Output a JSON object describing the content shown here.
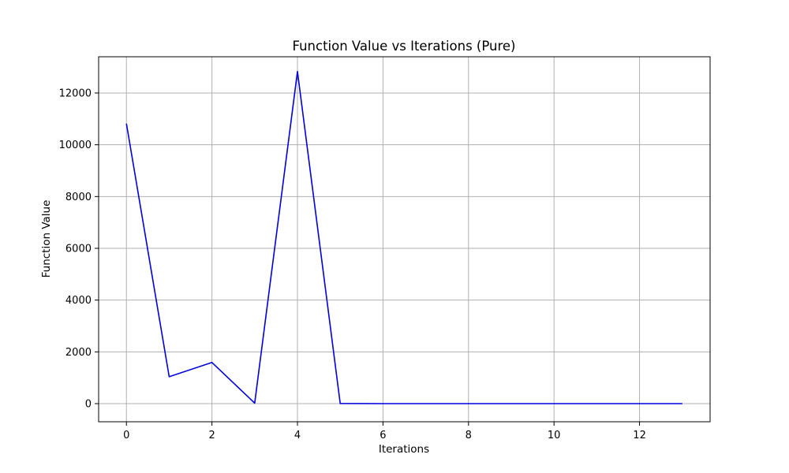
{
  "chart_data": {
    "type": "line",
    "title": "Function Value vs Iterations (Pure)",
    "xlabel": "Iterations",
    "ylabel": "Function Value",
    "xlim": [
      -0.65,
      13.65
    ],
    "ylim": [
      -700,
      13400
    ],
    "xticks": [
      0,
      2,
      4,
      6,
      8,
      10,
      12
    ],
    "yticks": [
      0,
      2000,
      4000,
      6000,
      8000,
      10000,
      12000
    ],
    "grid": true,
    "line_color": "#0000dd",
    "x": [
      0,
      1,
      2,
      3,
      4,
      5,
      6,
      7,
      8,
      9,
      10,
      11,
      12,
      13
    ],
    "y": [
      10820,
      1040,
      1590,
      20,
      12830,
      5,
      0,
      0,
      0,
      0,
      0,
      0,
      0,
      0
    ]
  }
}
